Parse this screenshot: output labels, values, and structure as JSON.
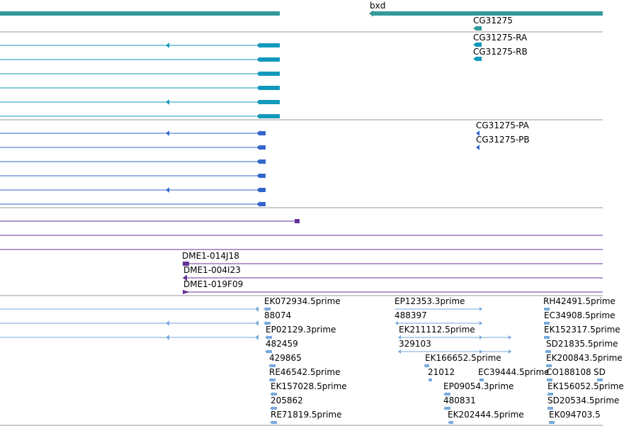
{
  "colors": {
    "gene": "#339999",
    "mrna": "#1199bb",
    "protein": "#3366cc",
    "clone": "#663399",
    "est": "#77aadd",
    "divider": "#999999"
  },
  "tracks": {
    "gene": {
      "name": "gene-track",
      "labels": [
        "bxd",
        "CG31275"
      ]
    },
    "mrna": {
      "name": "mrna-track",
      "labels": [
        "CG31275-RA",
        "CG31275-RB"
      ]
    },
    "protein": {
      "name": "protein-track",
      "labels": [
        "CG31275-PA",
        "CG31275-PB"
      ]
    },
    "clone": {
      "name": "clone-track",
      "labels": [
        "DME1-014J18",
        "DME1-004I23",
        "DME1-019F09"
      ]
    },
    "est": {
      "name": "est-track",
      "labels": [
        "EK072934.5prime",
        "88074",
        "EP02129.3prime",
        "482459",
        "429865",
        "RE46542.5prime",
        "EK157028.5prime",
        "205862",
        "RE71819.5prime",
        "EP12353.3prime",
        "488397",
        "EK211112.5prime",
        "329103",
        "EK166652.5prime",
        "21012",
        "EC39444.5prime",
        "EP09054.3prime",
        "480831",
        "EK202444.5prime",
        "RH42491.5prime",
        "EC34908.5prime",
        "EK152317.5prime",
        "SD21835.5prime",
        "EK200843.5prime",
        "CO188108",
        "SD",
        "EK156052.5prime",
        "SD20534.5prime",
        "EK094703.5"
      ]
    }
  }
}
